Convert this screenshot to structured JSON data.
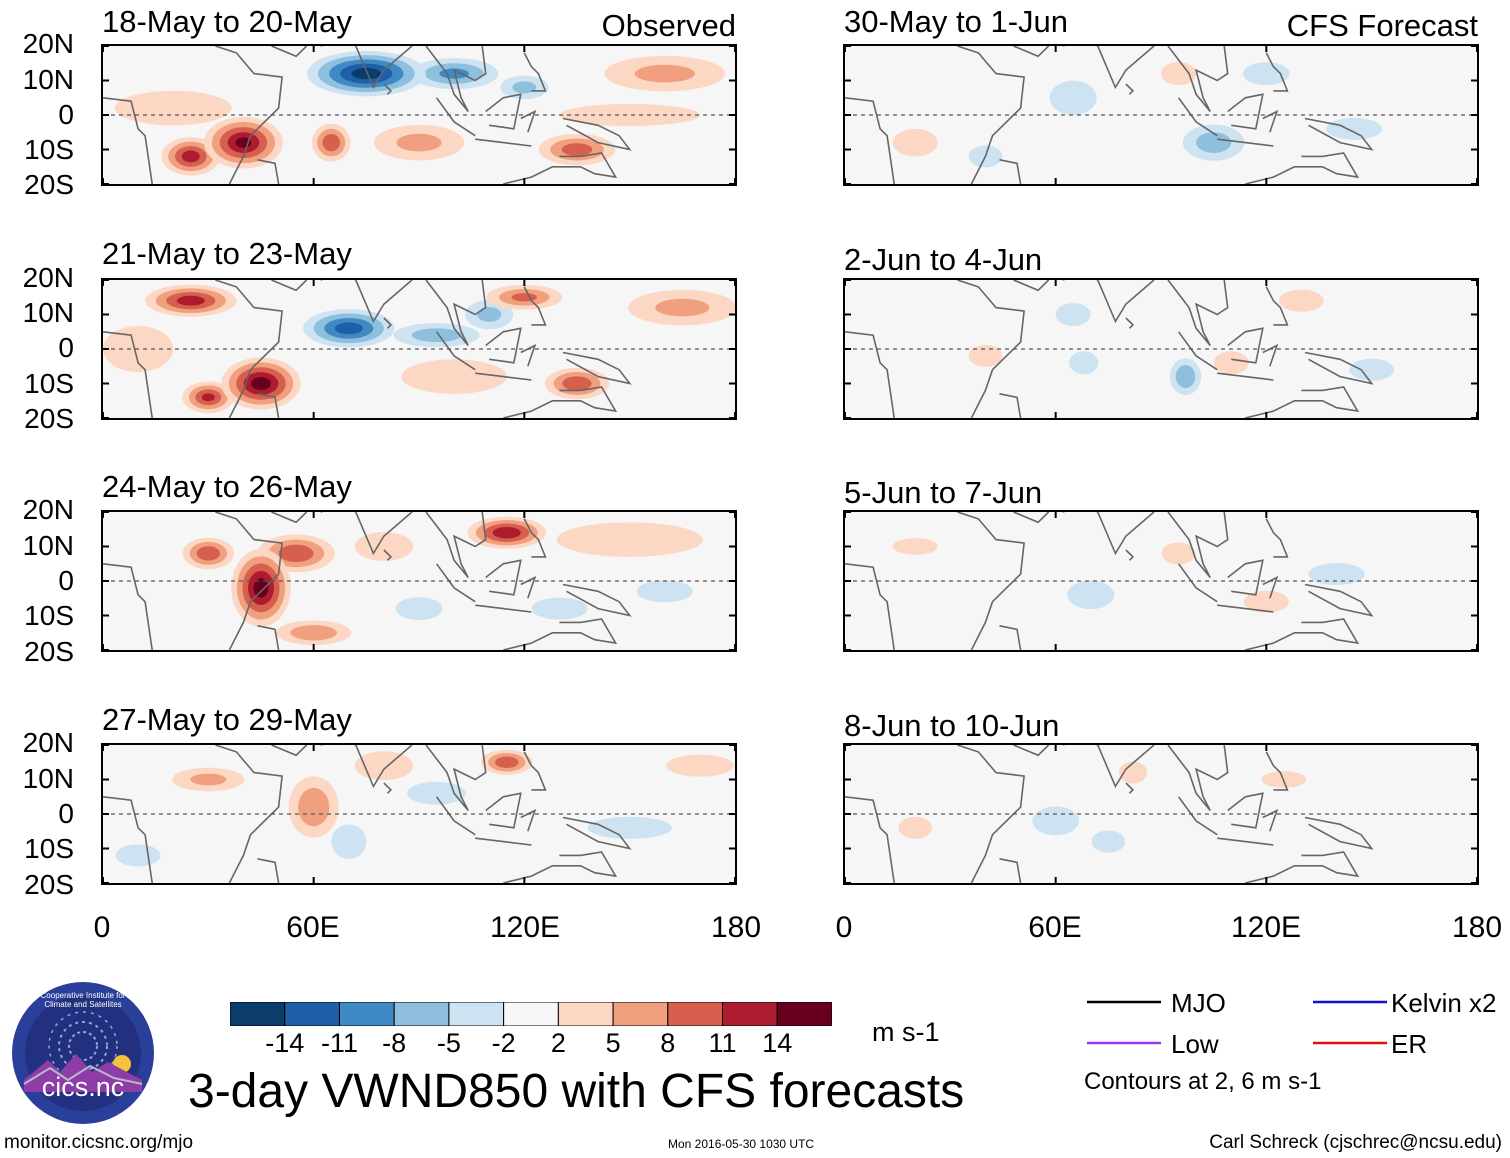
{
  "header": {
    "left_label": "Observed",
    "right_label": "CFS Forecast"
  },
  "latitude_labels": [
    "20N",
    "10N",
    "0",
    "10S",
    "20S"
  ],
  "longitude_labels": [
    "0",
    "60E",
    "120E",
    "180"
  ],
  "panels": {
    "observed": [
      {
        "title": "18-May to 20-May"
      },
      {
        "title": "21-May to 23-May"
      },
      {
        "title": "24-May to 26-May"
      },
      {
        "title": "27-May to 29-May"
      }
    ],
    "forecast": [
      {
        "title": "30-May to 1-Jun"
      },
      {
        "title": "2-Jun to 4-Jun"
      },
      {
        "title": "5-Jun to 7-Jun"
      },
      {
        "title": "8-Jun to 10-Jun"
      }
    ]
  },
  "colorbar": {
    "ticks": [
      "-14",
      "-11",
      "-8",
      "-5",
      "-2",
      "2",
      "5",
      "8",
      "11",
      "14"
    ],
    "colors": [
      "#0b3d6b",
      "#1f5fa8",
      "#3f8ac4",
      "#8ec0de",
      "#cde3f1",
      "#f7f7f7",
      "#fcd7c3",
      "#f1a07f",
      "#d6604d",
      "#ae1b2f",
      "#67001f"
    ],
    "units": "m s-1"
  },
  "title": "3-day VWND850 with CFS forecasts",
  "legend": {
    "items": [
      {
        "label": "MJO",
        "color": "#000000"
      },
      {
        "label": "Kelvin x2",
        "color": "#1010d0"
      },
      {
        "label": "Low",
        "color": "#9b30ff"
      },
      {
        "label": "ER",
        "color": "#e01010"
      }
    ],
    "note": "Contours at 2, 6 m s-1"
  },
  "footer": {
    "url": "monitor.cicsnc.org/mjo",
    "timestamp": "Mon 2016-05-30 1030 UTC",
    "credit": "Carl Schreck (cjschrec@ncsu.edu)"
  },
  "logo": {
    "text": "cics.nc",
    "ring_text": "Cooperative Institute for Climate and Satellites"
  },
  "chart_data": {
    "type": "heatmap",
    "variable": "VWND850",
    "units": "m s-1",
    "lon_range": [
      0,
      180
    ],
    "lat_range": [
      -20,
      20
    ],
    "lon_ticks": [
      0,
      60,
      120,
      180
    ],
    "lat_ticks": [
      20,
      10,
      0,
      -10,
      -20
    ],
    "contour_levels": [
      2,
      6
    ],
    "panels": [
      {
        "title": "18-May to 20-May",
        "source": "Observed",
        "blobs": [
          {
            "lon": 75,
            "lat": 12,
            "rx": 18,
            "ry": 7,
            "v": -15
          },
          {
            "lon": 100,
            "lat": 12,
            "rx": 14,
            "ry": 5,
            "v": -8
          },
          {
            "lon": 120,
            "lat": 8,
            "rx": 8,
            "ry": 4,
            "v": -5
          },
          {
            "lon": 40,
            "lat": -8,
            "rx": 12,
            "ry": 8,
            "v": 14
          },
          {
            "lon": 25,
            "lat": -12,
            "rx": 9,
            "ry": 6,
            "v": 12
          },
          {
            "lon": 65,
            "lat": -8,
            "rx": 6,
            "ry": 6,
            "v": 10
          },
          {
            "lon": 135,
            "lat": -10,
            "rx": 12,
            "ry": 5,
            "v": 9
          },
          {
            "lon": 160,
            "lat": 12,
            "rx": 20,
            "ry": 6,
            "v": 5
          },
          {
            "lon": 20,
            "lat": 2,
            "rx": 20,
            "ry": 6,
            "v": 4
          },
          {
            "lon": 90,
            "lat": -8,
            "rx": 15,
            "ry": 6,
            "v": 5
          },
          {
            "lon": 150,
            "lat": 0,
            "rx": 25,
            "ry": 4,
            "v": 3
          }
        ]
      },
      {
        "title": "21-May to 23-May",
        "source": "Observed",
        "blobs": [
          {
            "lon": 70,
            "lat": 6,
            "rx": 14,
            "ry": 6,
            "v": -12
          },
          {
            "lon": 95,
            "lat": 4,
            "rx": 14,
            "ry": 4,
            "v": -6
          },
          {
            "lon": 110,
            "lat": 10,
            "rx": 8,
            "ry": 5,
            "v": -5
          },
          {
            "lon": 45,
            "lat": -10,
            "rx": 12,
            "ry": 8,
            "v": 15
          },
          {
            "lon": 25,
            "lat": 14,
            "rx": 14,
            "ry": 5,
            "v": 12
          },
          {
            "lon": 30,
            "lat": -14,
            "rx": 8,
            "ry": 5,
            "v": 11
          },
          {
            "lon": 135,
            "lat": -10,
            "rx": 10,
            "ry": 5,
            "v": 10
          },
          {
            "lon": 120,
            "lat": 15,
            "rx": 12,
            "ry": 4,
            "v": 8
          },
          {
            "lon": 165,
            "lat": 12,
            "rx": 18,
            "ry": 6,
            "v": 5
          },
          {
            "lon": 100,
            "lat": -8,
            "rx": 18,
            "ry": 6,
            "v": 4
          },
          {
            "lon": 10,
            "lat": 0,
            "rx": 12,
            "ry": 8,
            "v": 4
          }
        ]
      },
      {
        "title": "24-May to 26-May",
        "source": "Observed",
        "blobs": [
          {
            "lon": 45,
            "lat": -2,
            "rx": 9,
            "ry": 12,
            "v": 15
          },
          {
            "lon": 55,
            "lat": 8,
            "rx": 12,
            "ry": 6,
            "v": 10
          },
          {
            "lon": 115,
            "lat": 14,
            "rx": 12,
            "ry": 5,
            "v": 13
          },
          {
            "lon": 30,
            "lat": 8,
            "rx": 8,
            "ry": 5,
            "v": 10
          },
          {
            "lon": 60,
            "lat": -15,
            "rx": 12,
            "ry": 4,
            "v": 7
          },
          {
            "lon": 150,
            "lat": 12,
            "rx": 25,
            "ry": 6,
            "v": 4
          },
          {
            "lon": 80,
            "lat": 10,
            "rx": 10,
            "ry": 5,
            "v": 4
          },
          {
            "lon": 90,
            "lat": -8,
            "rx": 8,
            "ry": 4,
            "v": -4
          },
          {
            "lon": 130,
            "lat": -8,
            "rx": 10,
            "ry": 4,
            "v": -3
          },
          {
            "lon": 160,
            "lat": -3,
            "rx": 10,
            "ry": 4,
            "v": -3
          }
        ]
      },
      {
        "title": "27-May to 29-May",
        "source": "Observed",
        "blobs": [
          {
            "lon": 60,
            "lat": 2,
            "rx": 8,
            "ry": 10,
            "v": 7
          },
          {
            "lon": 115,
            "lat": 15,
            "rx": 8,
            "ry": 4,
            "v": 10
          },
          {
            "lon": 30,
            "lat": 10,
            "rx": 12,
            "ry": 4,
            "v": 5
          },
          {
            "lon": 80,
            "lat": 14,
            "rx": 10,
            "ry": 5,
            "v": 4
          },
          {
            "lon": 70,
            "lat": -8,
            "rx": 6,
            "ry": 6,
            "v": -4
          },
          {
            "lon": 95,
            "lat": 6,
            "rx": 10,
            "ry": 4,
            "v": -4
          },
          {
            "lon": 150,
            "lat": -4,
            "rx": 15,
            "ry": 4,
            "v": -3
          },
          {
            "lon": 170,
            "lat": 14,
            "rx": 12,
            "ry": 4,
            "v": 3
          },
          {
            "lon": 10,
            "lat": -12,
            "rx": 8,
            "ry": 4,
            "v": -3
          }
        ]
      },
      {
        "title": "30-May to 1-Jun",
        "source": "CFS Forecast",
        "blobs": [
          {
            "lon": 105,
            "lat": -8,
            "rx": 10,
            "ry": 6,
            "v": -6
          },
          {
            "lon": 65,
            "lat": 5,
            "rx": 8,
            "ry": 6,
            "v": -4
          },
          {
            "lon": 95,
            "lat": 12,
            "rx": 6,
            "ry": 4,
            "v": 4
          },
          {
            "lon": 120,
            "lat": 12,
            "rx": 8,
            "ry": 4,
            "v": -4
          },
          {
            "lon": 20,
            "lat": -8,
            "rx": 8,
            "ry": 5,
            "v": 3
          },
          {
            "lon": 145,
            "lat": -4,
            "rx": 10,
            "ry": 4,
            "v": -3
          },
          {
            "lon": 40,
            "lat": -12,
            "rx": 6,
            "ry": 4,
            "v": -3
          }
        ]
      },
      {
        "title": "2-Jun to 4-Jun",
        "source": "CFS Forecast",
        "blobs": [
          {
            "lon": 97,
            "lat": -8,
            "rx": 5,
            "ry": 6,
            "v": -7
          },
          {
            "lon": 65,
            "lat": 10,
            "rx": 6,
            "ry": 4,
            "v": -4
          },
          {
            "lon": 68,
            "lat": -4,
            "rx": 5,
            "ry": 4,
            "v": -4
          },
          {
            "lon": 110,
            "lat": -4,
            "rx": 6,
            "ry": 4,
            "v": 4
          },
          {
            "lon": 130,
            "lat": 14,
            "rx": 8,
            "ry": 4,
            "v": 3
          },
          {
            "lon": 150,
            "lat": -6,
            "rx": 8,
            "ry": 4,
            "v": -3
          },
          {
            "lon": 40,
            "lat": -2,
            "rx": 6,
            "ry": 4,
            "v": 3
          }
        ]
      },
      {
        "title": "5-Jun to 7-Jun",
        "source": "CFS Forecast",
        "blobs": [
          {
            "lon": 70,
            "lat": -4,
            "rx": 8,
            "ry": 5,
            "v": -4
          },
          {
            "lon": 95,
            "lat": 8,
            "rx": 6,
            "ry": 4,
            "v": 3
          },
          {
            "lon": 120,
            "lat": -6,
            "rx": 8,
            "ry": 4,
            "v": 3
          },
          {
            "lon": 140,
            "lat": 2,
            "rx": 10,
            "ry": 4,
            "v": -3
          },
          {
            "lon": 20,
            "lat": 10,
            "rx": 8,
            "ry": 3,
            "v": 3
          }
        ]
      },
      {
        "title": "8-Jun to 10-Jun",
        "source": "CFS Forecast",
        "blobs": [
          {
            "lon": 60,
            "lat": -2,
            "rx": 8,
            "ry": 5,
            "v": -4
          },
          {
            "lon": 75,
            "lat": -8,
            "rx": 6,
            "ry": 4,
            "v": -3
          },
          {
            "lon": 82,
            "lat": 12,
            "rx": 5,
            "ry": 4,
            "v": 3
          },
          {
            "lon": 125,
            "lat": 10,
            "rx": 8,
            "ry": 3,
            "v": 3
          },
          {
            "lon": 20,
            "lat": -4,
            "rx": 6,
            "ry": 4,
            "v": 3
          }
        ]
      }
    ]
  }
}
